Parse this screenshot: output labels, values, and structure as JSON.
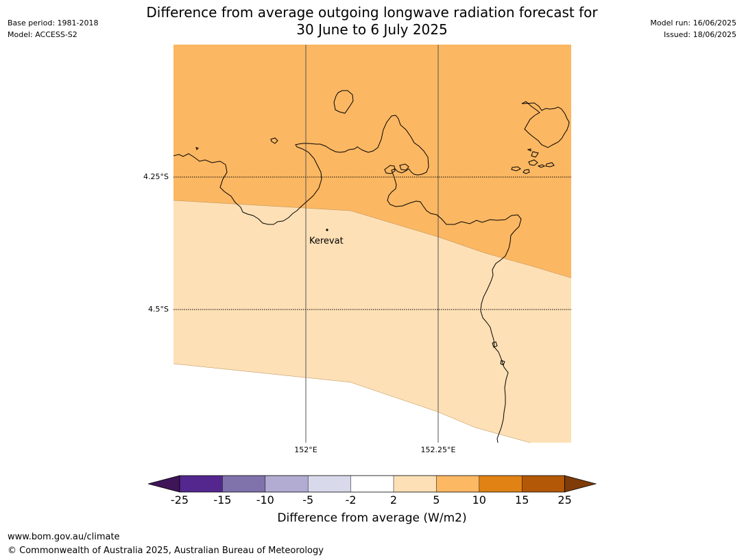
{
  "header": {
    "title_line1": "Difference from average outgoing longwave radiation forecast for",
    "title_line2": "30 June to 6 July 2025",
    "base_period": "Base period: 1981-2018",
    "model": "Model: ACCESS-S2",
    "model_run": "Model run: 16/06/2025",
    "issued": "Issued: 18/06/2025"
  },
  "map": {
    "lat_labels": [
      "4.25°S",
      "4.5°S"
    ],
    "lon_labels": [
      "152°E",
      "152.25°E"
    ],
    "place": "Kerevat",
    "colors": {
      "band_5_10": "#fbb762",
      "band_2_5": "#fde0b6",
      "coastline": "#000000",
      "grid": "#555555"
    }
  },
  "legend": {
    "title": "Difference from average (W/m2)",
    "ticks": [
      "-25",
      "-15",
      "-10",
      "-5",
      "-2",
      "2",
      "5",
      "10",
      "15",
      "25"
    ],
    "colors": [
      "#3f1458",
      "#54278f",
      "#8073ac",
      "#b2abd2",
      "#d8daeb",
      "#ffffff",
      "#fee0b6",
      "#fdb863",
      "#e08214",
      "#b35806",
      "#7f3b08"
    ]
  },
  "footer": {
    "url": "www.bom.gov.au/climate",
    "copyright": "© Commonwealth of Australia 2025, Australian Bureau of Meteorology"
  }
}
